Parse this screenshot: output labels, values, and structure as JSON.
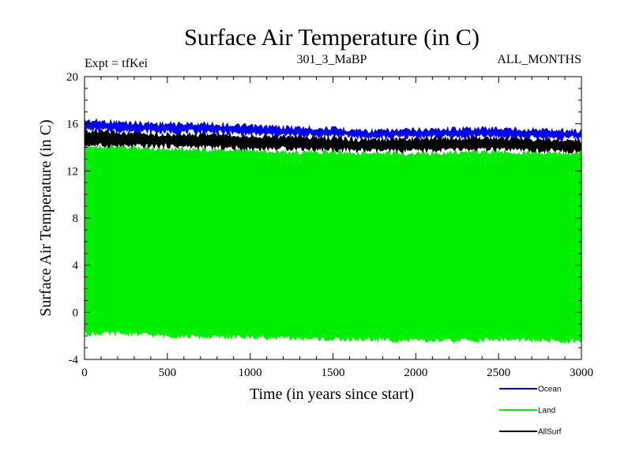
{
  "chart_data": {
    "type": "area",
    "title": "Surface Air Temperature (in C)",
    "header_left": "Expt = tfKei",
    "header_center": "301_3_MaBP",
    "header_right": "ALL_MONTHS",
    "xlabel": "Time (in years since start)",
    "ylabel": "Surface Air Temperature (in C)",
    "xlim": [
      0,
      3000
    ],
    "ylim": [
      -4,
      20
    ],
    "x_ticks": [
      0,
      500,
      1000,
      1500,
      2000,
      2500,
      3000
    ],
    "y_ticks": [
      -4,
      0,
      4,
      8,
      12,
      16,
      20
    ],
    "grid": false,
    "legend_position": "bottom-right",
    "series": [
      {
        "name": "Ocean",
        "color": "#0000ff",
        "x": [
          0,
          250,
          500,
          750,
          1000,
          1250,
          1500,
          1750,
          2000,
          2250,
          2500,
          2750,
          3000
        ],
        "upper": [
          16.5,
          16.3,
          16.2,
          16.2,
          16.0,
          15.9,
          15.8,
          15.6,
          15.7,
          15.8,
          15.8,
          15.7,
          15.6
        ],
        "lower": [
          15.3,
          15.2,
          15.1,
          15.1,
          14.9,
          14.8,
          14.8,
          14.6,
          14.7,
          14.7,
          14.7,
          14.6,
          14.6
        ]
      },
      {
        "name": "Land",
        "color": "#00ee00",
        "x": [
          0,
          250,
          500,
          750,
          1000,
          1250,
          1500,
          1750,
          2000,
          2250,
          2500,
          2750,
          3000
        ],
        "upper": [
          14.3,
          14.2,
          14.1,
          14.0,
          13.9,
          13.8,
          13.8,
          13.7,
          13.7,
          13.8,
          13.8,
          13.7,
          13.7
        ],
        "lower": [
          -2.0,
          -2.0,
          -2.2,
          -2.3,
          -2.3,
          -2.4,
          -2.5,
          -2.5,
          -2.6,
          -2.6,
          -2.5,
          -2.6,
          -2.7
        ]
      },
      {
        "name": "AllSurf",
        "color": "#000000",
        "x": [
          0,
          250,
          500,
          750,
          1000,
          1250,
          1500,
          1750,
          2000,
          2250,
          2500,
          2750,
          3000
        ],
        "upper": [
          15.6,
          15.4,
          15.3,
          15.3,
          15.2,
          15.1,
          15.0,
          14.8,
          14.9,
          15.0,
          15.0,
          14.9,
          14.8
        ],
        "lower": [
          14.0,
          13.9,
          13.9,
          13.8,
          13.7,
          13.7,
          13.6,
          13.5,
          13.5,
          13.6,
          13.6,
          13.5,
          13.5
        ]
      }
    ]
  }
}
